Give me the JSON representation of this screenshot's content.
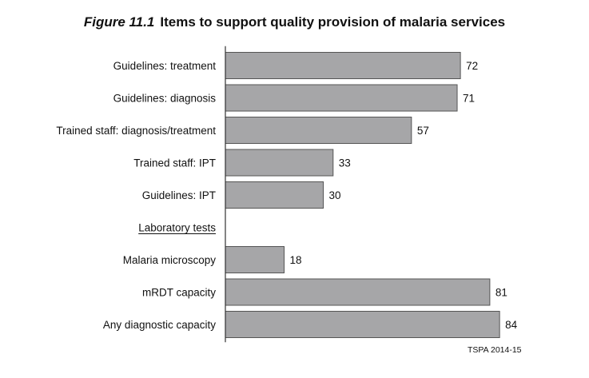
{
  "figure": {
    "number": "Figure 11.1",
    "title": "Items to support quality provision of malaria services"
  },
  "source": "TSPA 2014-15",
  "chart_data": {
    "type": "bar",
    "orientation": "horizontal",
    "categories": [
      "Guidelines: treatment",
      "Guidelines: diagnosis",
      "Trained staff: diagnosis/treatment",
      "Trained staff: IPT",
      "Guidelines: IPT",
      "Laboratory tests",
      "Malaria microscopy",
      "mRDT capacity",
      "Any diagnostic capacity"
    ],
    "values": [
      72,
      71,
      57,
      33,
      30,
      null,
      18,
      81,
      84
    ],
    "section_headers": [
      "Laboratory tests"
    ],
    "bar_color": "#a6a6a8",
    "bar_stroke": "#555555",
    "xlim": [
      0,
      100
    ],
    "grid": false,
    "legend": "none",
    "title": "Items to support quality provision of malaria services",
    "xlabel": "",
    "ylabel": ""
  }
}
